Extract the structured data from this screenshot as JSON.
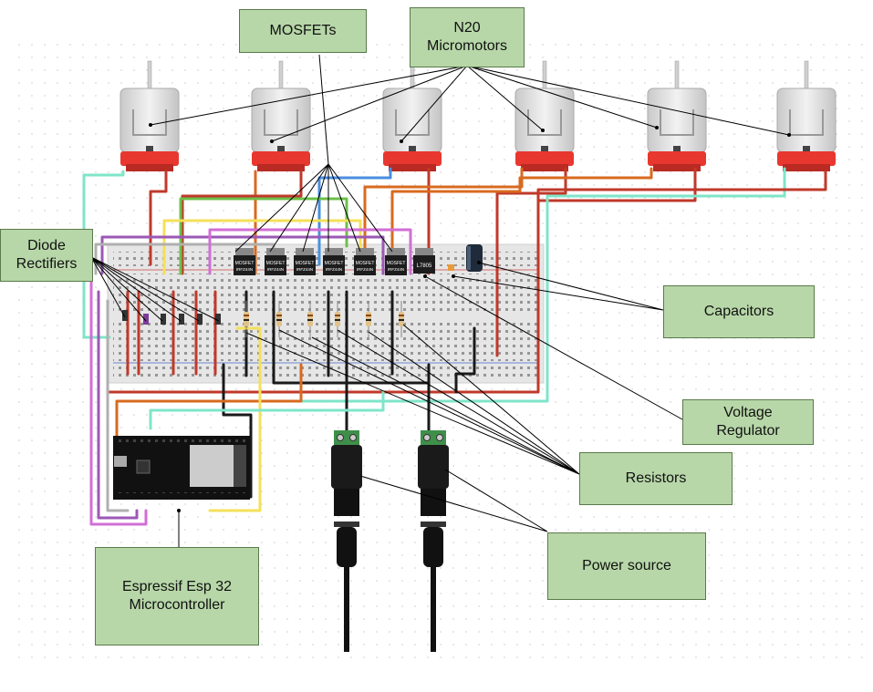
{
  "labels": {
    "mosfets": "MOSFETs",
    "motors": "N20\nMicromotors",
    "diodes": "Diode\nRectifiers",
    "capacitors": "Capacitors",
    "regulator": "Voltage\nRegulator",
    "resistors": "Resistors",
    "power": "Power source",
    "esp32": "Espressif Esp 32\nMicrocontroller"
  },
  "component_markings": {
    "mosfet": [
      "MOSFET",
      "IRFZ44N"
    ],
    "regulator": "L7805"
  },
  "colors": {
    "label_fill": "#b7d7a8",
    "label_border": "#5a7a4a",
    "breadboard": "#e9e9e9",
    "motor_body": "#dcdcdc",
    "motor_cap": "#e8372f",
    "wire_red": "#c0392b",
    "wire_orange": "#d86a1f",
    "wire_black": "#1a1a1a",
    "wire_magenta": "#d26ed6",
    "wire_purple": "#9b59b6",
    "wire_teal": "#7fe5c9",
    "wire_yellow": "#f4e05a",
    "wire_green": "#6cc04a",
    "wire_blue": "#4a8ee0",
    "wire_gray": "#b0b0b0"
  }
}
